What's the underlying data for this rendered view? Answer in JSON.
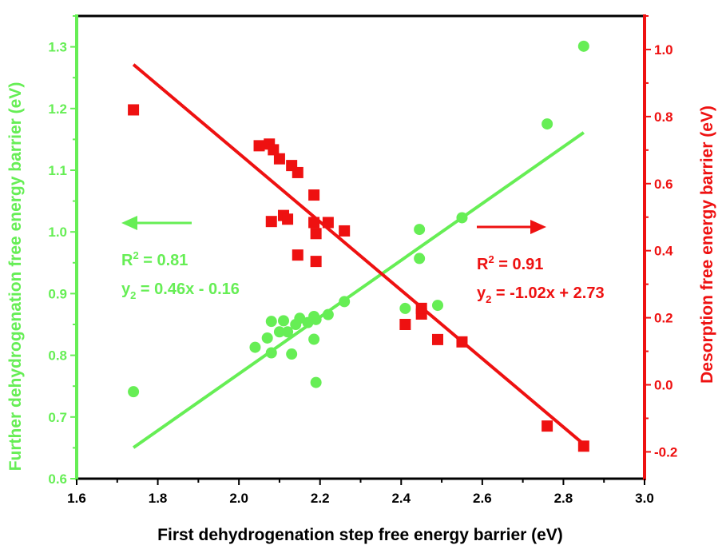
{
  "chart_data": {
    "type": "scatter",
    "xlabel": "First dehydrogenation step free energy barrier (eV)",
    "ylabel_left": "Further dehydrogenation free energy barrier (eV)",
    "ylabel_right": "Desorption free energy barrier (eV)",
    "xlim": [
      1.6,
      3.0
    ],
    "ylim_left": [
      0.6,
      1.35
    ],
    "ylim_right": [
      -0.28,
      1.1
    ],
    "x_ticks": [
      "1.6",
      "1.8",
      "2.0",
      "2.2",
      "2.4",
      "2.6",
      "2.8",
      "3.0"
    ],
    "y_left_ticks": [
      "0.6",
      "0.7",
      "0.8",
      "0.9",
      "1.0",
      "1.1",
      "1.2",
      "1.3"
    ],
    "y_right_ticks": [
      "-0.2",
      "0.0",
      "0.2",
      "0.4",
      "0.6",
      "0.8",
      "1.0"
    ],
    "grid": false,
    "colors": {
      "green": "#66ee55",
      "red": "#ee1111",
      "frame": "#000000"
    },
    "series": [
      {
        "name": "Further dehydrogenation",
        "axis": "left",
        "marker": "circle",
        "color": "#66ee55",
        "points": [
          [
            1.74,
            0.741
          ],
          [
            2.04,
            0.813
          ],
          [
            2.07,
            0.828
          ],
          [
            2.08,
            0.855
          ],
          [
            2.08,
            0.804
          ],
          [
            2.1,
            0.838
          ],
          [
            2.11,
            0.856
          ],
          [
            2.12,
            0.838
          ],
          [
            2.13,
            0.802
          ],
          [
            2.14,
            0.85
          ],
          [
            2.15,
            0.86
          ],
          [
            2.17,
            0.853
          ],
          [
            2.185,
            0.863
          ],
          [
            2.185,
            0.826
          ],
          [
            2.19,
            0.858
          ],
          [
            2.19,
            0.756
          ],
          [
            2.22,
            0.866
          ],
          [
            2.26,
            0.887
          ],
          [
            2.41,
            0.876
          ],
          [
            2.445,
            1.004
          ],
          [
            2.445,
            0.957
          ],
          [
            2.49,
            0.881
          ],
          [
            2.55,
            1.023
          ],
          [
            2.76,
            1.175
          ],
          [
            2.85,
            1.301
          ]
        ],
        "fit": {
          "equation": "y2 = 0.46x - 0.16",
          "r2": "0.81",
          "x_range": [
            1.74,
            2.85
          ]
        }
      },
      {
        "name": "Desorption",
        "axis": "right",
        "marker": "square",
        "color": "#ee1111",
        "points": [
          [
            1.74,
            0.82
          ],
          [
            2.05,
            0.713
          ],
          [
            2.075,
            0.718
          ],
          [
            2.085,
            0.701
          ],
          [
            2.1,
            0.674
          ],
          [
            2.13,
            0.654
          ],
          [
            2.145,
            0.633
          ],
          [
            2.08,
            0.487
          ],
          [
            2.11,
            0.505
          ],
          [
            2.12,
            0.494
          ],
          [
            2.145,
            0.387
          ],
          [
            2.185,
            0.566
          ],
          [
            2.185,
            0.484
          ],
          [
            2.19,
            0.451
          ],
          [
            2.19,
            0.368
          ],
          [
            2.22,
            0.484
          ],
          [
            2.26,
            0.459
          ],
          [
            2.41,
            0.18
          ],
          [
            2.45,
            0.211
          ],
          [
            2.45,
            0.228
          ],
          [
            2.49,
            0.135
          ],
          [
            2.55,
            0.128
          ],
          [
            2.76,
            -0.123
          ],
          [
            2.85,
            -0.183
          ]
        ],
        "fit": {
          "equation": "y2 = -1.02x + 2.73",
          "r2": "0.91",
          "x_range": [
            1.74,
            2.85
          ]
        }
      }
    ],
    "annotations": {
      "left": {
        "r2_prefix": "R",
        "r2_exp": "2",
        "r2_value": " = 0.81",
        "eq_prefix": "y",
        "eq_sub": "2",
        "eq_rest": " = 0.46x - 0.16"
      },
      "right": {
        "r2_prefix": "R",
        "r2_exp": "2",
        "r2_value": " = 0.91",
        "eq_prefix": "y",
        "eq_sub": "2",
        "eq_rest": " = -1.02x + 2.73"
      }
    }
  }
}
